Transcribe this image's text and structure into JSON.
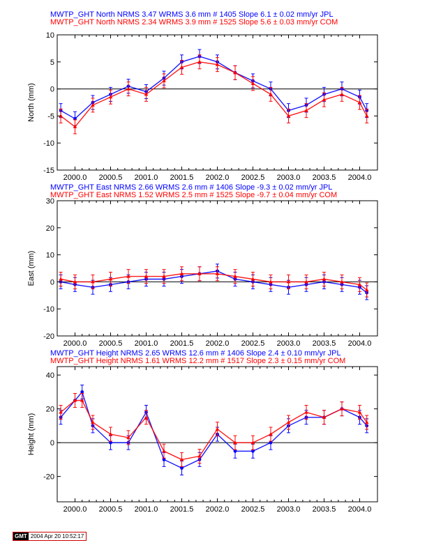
{
  "chart_data": [
    {
      "type": "scatter",
      "ylabel": "North (mm)",
      "xlim": [
        1999.75,
        2004.25
      ],
      "ylim": [
        -15,
        10
      ],
      "xticks": [
        "2000.0",
        "2000.5",
        "2001.0",
        "2001.5",
        "2002.0",
        "2002.5",
        "2003.0",
        "2003.5",
        "2004.0"
      ],
      "yticks": [
        "10",
        "5",
        "0",
        "-5",
        "-10",
        "-15"
      ],
      "grid": false,
      "zero_line": true,
      "series": [
        {
          "name": "JPL",
          "color": "#0000ff",
          "label": "MWTP_GHT North NRMS 3.47 WRMS  3.6 mm # 1405 Slope    6.1 ±  0.02 mm/yr JPL",
          "nrms": 3.47,
          "wrms_mm": 3.6,
          "count": 1405,
          "slope_mm_yr": 6.1,
          "slope_sigma": 0.02,
          "x": [
            1999.8,
            2000.0,
            2000.25,
            2000.5,
            2000.75,
            2001.0,
            2001.25,
            2001.5,
            2001.75,
            2002.0,
            2002.25,
            2002.5,
            2002.75,
            2003.0,
            2003.25,
            2003.5,
            2003.75,
            2004.0,
            2004.1
          ],
          "y": [
            -4,
            -5.5,
            -2.5,
            -1,
            0.5,
            -0.5,
            2,
            5,
            6,
            5,
            3,
            1.5,
            0,
            -4,
            -3,
            -1,
            0,
            -1.5,
            -4
          ]
        },
        {
          "name": "COM",
          "color": "#ff0000",
          "label": "MWTP_GHT North NRMS 2.34 WRMS  3.9 mm # 1525 Slope    5.6 ±  0.03 mm/yr COM",
          "nrms": 2.34,
          "wrms_mm": 3.9,
          "count": 1525,
          "slope_mm_yr": 5.6,
          "slope_sigma": 0.03,
          "x": [
            1999.8,
            2000.0,
            2000.25,
            2000.5,
            2000.75,
            2001.0,
            2001.25,
            2001.5,
            2001.75,
            2002.0,
            2002.25,
            2002.5,
            2002.75,
            2003.0,
            2003.25,
            2003.5,
            2003.75,
            2004.0,
            2004.1
          ],
          "y": [
            -5,
            -7,
            -3,
            -1.5,
            0,
            -1,
            1.5,
            4,
            5,
            4.5,
            3,
            1,
            -1,
            -5,
            -4,
            -2,
            -1,
            -2.5,
            -5
          ]
        }
      ]
    },
    {
      "type": "scatter",
      "ylabel": "East (mm)",
      "xlim": [
        1999.75,
        2004.25
      ],
      "ylim": [
        -20,
        30
      ],
      "xticks": [
        "2000.0",
        "2000.5",
        "2001.0",
        "2001.5",
        "2002.0",
        "2002.5",
        "2003.0",
        "2003.5",
        "2004.0"
      ],
      "yticks": [
        "30",
        "20",
        "10",
        "0",
        "-10",
        "-20"
      ],
      "grid": false,
      "zero_line": true,
      "series": [
        {
          "name": "JPL",
          "color": "#0000ff",
          "label": "MWTP_GHT East NRMS 2.66 WRMS  2.6 mm # 1406 Slope   -9.3 ±  0.02 mm/yr JPL",
          "nrms": 2.66,
          "wrms_mm": 2.6,
          "count": 1406,
          "slope_mm_yr": -9.3,
          "slope_sigma": 0.02,
          "x": [
            1999.8,
            2000.0,
            2000.25,
            2000.5,
            2000.75,
            2001.0,
            2001.25,
            2001.5,
            2001.75,
            2002.0,
            2002.25,
            2002.5,
            2002.75,
            2003.0,
            2003.25,
            2003.5,
            2003.75,
            2004.0,
            2004.1
          ],
          "y": [
            0,
            -1,
            -2,
            -1,
            0,
            1,
            1,
            2,
            3,
            4,
            1,
            0,
            -1,
            -2,
            -1,
            0,
            -1,
            -2,
            -4
          ]
        },
        {
          "name": "COM",
          "color": "#ff0000",
          "label": "MWTP_GHT East NRMS 1.52 WRMS  2.5 mm # 1525 Slope   -9.7 ±  0.04 mm/yr COM",
          "nrms": 1.52,
          "wrms_mm": 2.5,
          "count": 1525,
          "slope_mm_yr": -9.7,
          "slope_sigma": 0.04,
          "x": [
            1999.8,
            2000.0,
            2000.25,
            2000.5,
            2000.75,
            2001.0,
            2001.25,
            2001.5,
            2001.75,
            2002.0,
            2002.25,
            2002.5,
            2002.75,
            2003.0,
            2003.25,
            2003.5,
            2003.75,
            2004.0,
            2004.1
          ],
          "y": [
            1,
            0,
            0,
            1,
            2,
            2,
            2,
            3,
            3,
            3,
            2,
            1,
            0,
            0,
            0,
            1,
            0,
            -1,
            -3
          ]
        }
      ]
    },
    {
      "type": "scatter",
      "ylabel": "Height (mm)",
      "xlim": [
        1999.75,
        2004.25
      ],
      "ylim": [
        -35,
        45
      ],
      "xticks": [
        "2000.0",
        "2000.5",
        "2001.0",
        "2001.5",
        "2002.0",
        "2002.5",
        "2003.0",
        "2003.5",
        "2004.0"
      ],
      "yticks": [
        "40",
        "20",
        "0",
        "-20"
      ],
      "grid": false,
      "zero_line": true,
      "series": [
        {
          "name": "JPL",
          "color": "#0000ff",
          "label": "MWTP_GHT Height NRMS 2.65 WRMS 12.6 mm # 1406 Slope    2.4 ±  0.10 mm/yr JPL",
          "nrms": 2.65,
          "wrms_mm": 12.6,
          "count": 1406,
          "slope_mm_yr": 2.4,
          "slope_sigma": 0.1,
          "x": [
            1999.8,
            2000.0,
            2000.1,
            2000.25,
            2000.5,
            2000.75,
            2001.0,
            2001.25,
            2001.5,
            2001.75,
            2002.0,
            2002.25,
            2002.5,
            2002.75,
            2003.0,
            2003.25,
            2003.5,
            2003.75,
            2004.0,
            2004.1
          ],
          "y": [
            15,
            25,
            30,
            10,
            0,
            0,
            18,
            -10,
            -15,
            -10,
            5,
            -5,
            -5,
            0,
            10,
            15,
            15,
            20,
            15,
            10
          ]
        },
        {
          "name": "COM",
          "color": "#ff0000",
          "label": "MWTP_GHT Height NRMS 1.61 WRMS 12.2 mm # 1517 Slope    2.3 ±  0.15 mm/yr COM",
          "nrms": 1.61,
          "wrms_mm": 12.2,
          "count": 1517,
          "slope_mm_yr": 2.3,
          "slope_sigma": 0.15,
          "x": [
            1999.8,
            2000.0,
            2000.1,
            2000.25,
            2000.5,
            2000.75,
            2001.0,
            2001.25,
            2001.5,
            2001.75,
            2002.0,
            2002.25,
            2002.5,
            2002.75,
            2003.0,
            2003.25,
            2003.5,
            2003.75,
            2004.0,
            2004.1
          ],
          "y": [
            18,
            25,
            25,
            12,
            5,
            3,
            15,
            -5,
            -10,
            -8,
            8,
            0,
            0,
            5,
            12,
            18,
            15,
            20,
            18,
            12
          ]
        }
      ]
    }
  ],
  "footer": {
    "logo": "GMT",
    "timestamp": "2004 Apr 20 10:52:17"
  }
}
